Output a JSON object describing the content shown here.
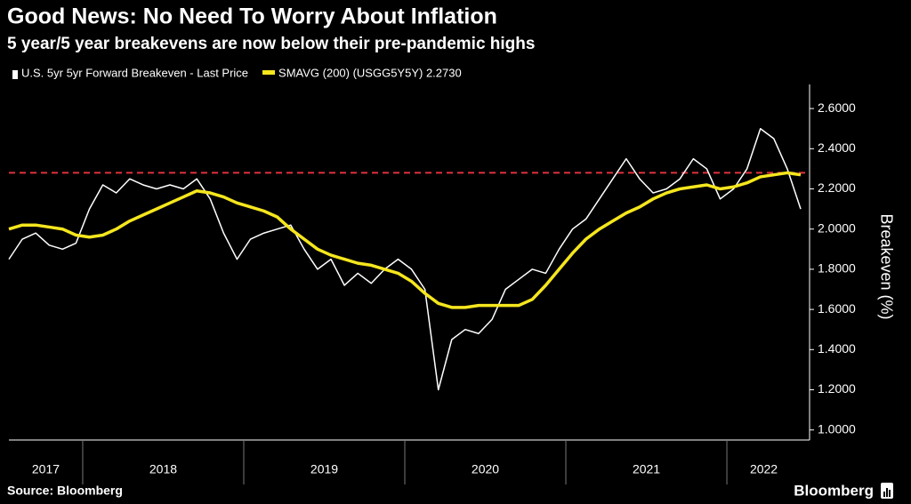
{
  "chart_data": {
    "type": "line",
    "title": "Good News: No Need To Worry About Inflation",
    "subtitle": "5 year/5 year breakevens are now below their pre-pandemic highs",
    "ylabel": "Breakeven (%)",
    "source": "Source: Bloomberg",
    "logo": "Bloomberg",
    "categories": [
      "2017",
      null,
      null,
      null,
      null,
      null,
      "2018",
      null,
      null,
      null,
      null,
      null,
      null,
      null,
      null,
      null,
      null,
      null,
      "2019",
      null,
      null,
      null,
      null,
      null,
      null,
      null,
      null,
      null,
      null,
      null,
      "2020",
      null,
      null,
      null,
      null,
      null,
      null,
      null,
      null,
      null,
      null,
      null,
      "2021",
      null,
      null,
      null,
      null,
      null,
      null,
      null,
      null,
      null,
      null,
      null,
      "2022",
      null,
      null,
      null,
      null,
      null
    ],
    "series": [
      {
        "name": "U.S. 5yr 5yr Forward Breakeven - Last Price",
        "color": "#ffffff",
        "values": [
          1.85,
          1.95,
          1.98,
          1.92,
          1.9,
          1.93,
          2.1,
          2.22,
          2.18,
          2.25,
          2.22,
          2.2,
          2.22,
          2.2,
          2.25,
          2.15,
          1.98,
          1.85,
          1.95,
          1.98,
          2.0,
          2.02,
          1.9,
          1.8,
          1.85,
          1.72,
          1.78,
          1.73,
          1.8,
          1.85,
          1.8,
          1.7,
          1.2,
          1.45,
          1.5,
          1.48,
          1.55,
          1.7,
          1.75,
          1.8,
          1.78,
          1.9,
          2.0,
          2.05,
          2.15,
          2.25,
          2.35,
          2.25,
          2.18,
          2.2,
          2.25,
          2.35,
          2.3,
          2.15,
          2.2,
          2.3,
          2.5,
          2.45,
          2.3,
          2.1
        ]
      },
      {
        "name": "SMAVG (200) (USGG5Y5Y) 2.2730",
        "color": "#f5e61e",
        "values": [
          2.0,
          2.02,
          2.02,
          2.01,
          2.0,
          1.97,
          1.96,
          1.97,
          2.0,
          2.04,
          2.07,
          2.1,
          2.13,
          2.16,
          2.19,
          2.18,
          2.16,
          2.13,
          2.11,
          2.09,
          2.06,
          2.0,
          1.95,
          1.9,
          1.87,
          1.85,
          1.83,
          1.82,
          1.8,
          1.78,
          1.74,
          1.68,
          1.63,
          1.61,
          1.61,
          1.62,
          1.62,
          1.62,
          1.62,
          1.65,
          1.72,
          1.8,
          1.88,
          1.95,
          2.0,
          2.04,
          2.08,
          2.11,
          2.15,
          2.18,
          2.2,
          2.21,
          2.22,
          2.2,
          2.21,
          2.23,
          2.26,
          2.27,
          2.28,
          2.27
        ]
      }
    ],
    "reference_line": {
      "value": 2.28,
      "color": "#e0323c"
    },
    "ylim": [
      0.95,
      2.72
    ],
    "yticks": [
      {
        "value": 1.0,
        "label": "1.0000"
      },
      {
        "value": 1.2,
        "label": "1.2000"
      },
      {
        "value": 1.4,
        "label": "1.4000"
      },
      {
        "value": 1.6,
        "label": "1.6000"
      },
      {
        "value": 1.8,
        "label": "1.8000"
      },
      {
        "value": 2.0,
        "label": "2.0000"
      },
      {
        "value": 2.2,
        "label": "2.2000"
      },
      {
        "value": 2.4,
        "label": "2.4000"
      },
      {
        "value": 2.6,
        "label": "2.6000"
      }
    ],
    "axis_side": "right",
    "grid": false
  }
}
